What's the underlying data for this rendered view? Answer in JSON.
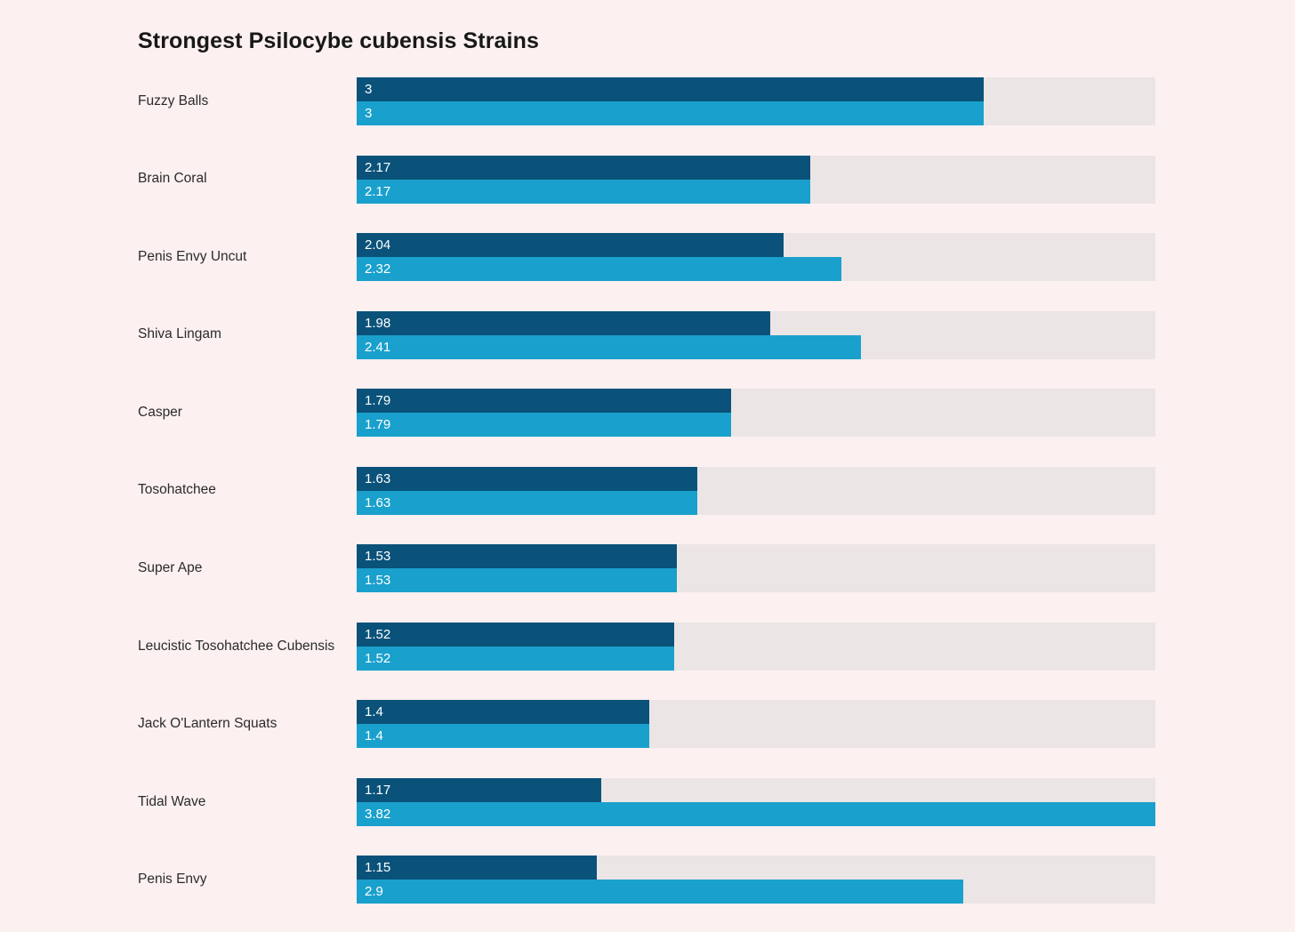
{
  "page": {
    "background_color": "#fcf0f0"
  },
  "chart_data": {
    "type": "bar",
    "orientation": "horizontal",
    "title": "Strongest Psilocybe cubensis Strains",
    "categories": [
      "Fuzzy Balls",
      "Brain Coral",
      "Penis Envy Uncut",
      "Shiva Lingam",
      "Casper",
      "Tosohatchee",
      "Super Ape",
      "Leucistic Tosohatchee Cubensis",
      "Jack O'Lantern Squats",
      "Tidal Wave",
      "Penis Envy"
    ],
    "series": [
      {
        "name": "dark-blue-series",
        "color": "#0a527a",
        "values": [
          3,
          2.17,
          2.04,
          1.98,
          1.79,
          1.63,
          1.53,
          1.52,
          1.4,
          1.17,
          1.15
        ]
      },
      {
        "name": "light-blue-series",
        "color": "#1aa0cc",
        "values": [
          3,
          2.17,
          2.32,
          2.41,
          1.79,
          1.63,
          1.53,
          1.52,
          1.4,
          3.82,
          2.9
        ]
      }
    ],
    "xlim": [
      0,
      3.82
    ],
    "xlabel": "",
    "ylabel": "",
    "value_labels": "inside-left, white",
    "track_color": "#ece5e5",
    "legend": "none",
    "grid": "off"
  }
}
